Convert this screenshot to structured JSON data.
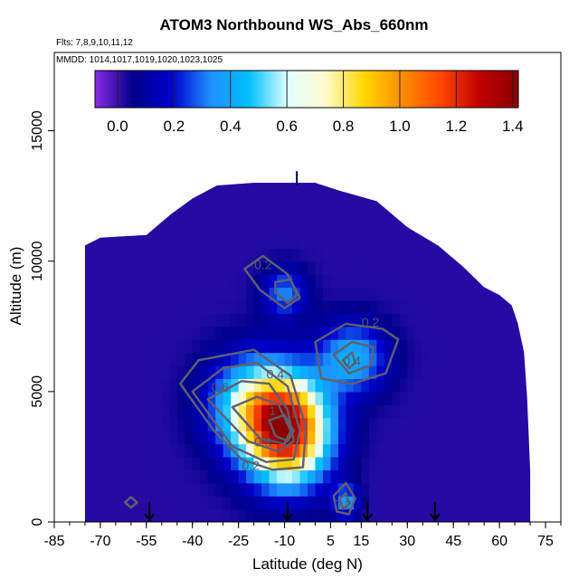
{
  "chart_data": {
    "type": "heatmap",
    "title": "ATOM3 Northbound WS_Abs_660nm",
    "subtitle_flights": "Flts: 7,8,9,10,11,12",
    "subtitle_dates": "MMDD: 1014,1017,1019,1020,1023,1025",
    "xlabel": "Latitude (deg N)",
    "ylabel": "Altitude (m)",
    "xlim": [
      -85,
      80
    ],
    "ylim": [
      0,
      18000
    ],
    "x_ticks": [
      -85,
      -70,
      -55,
      -40,
      -25,
      -10,
      5,
      15,
      30,
      45,
      60,
      75
    ],
    "y_ticks": [
      0,
      5000,
      10000,
      15000
    ],
    "colorbar": {
      "range": [
        -0.08,
        1.42
      ],
      "ticks": [
        0.0,
        0.2,
        0.4,
        0.6,
        0.8,
        1.0,
        1.2,
        1.4
      ],
      "tick_labels": [
        "0.0",
        "0.2",
        "0.4",
        "0.6",
        "0.8",
        "1.0",
        "1.2",
        "1.4"
      ],
      "colors": [
        "#8a2be2",
        "#00008b",
        "#0000cd",
        "#1e90ff",
        "#00bfff",
        "#e0ffff",
        "#fffacd",
        "#ffd700",
        "#ff8c00",
        "#ff4500",
        "#c00000",
        "#8b0000"
      ]
    },
    "field_peaks": [
      {
        "lat": -9,
        "alt": 3500,
        "value": 1.25
      },
      {
        "lat": -20,
        "alt": 4500,
        "value": 0.55
      },
      {
        "lat": 12,
        "alt": 6300,
        "value": 0.4
      },
      {
        "lat": -10,
        "alt": 8800,
        "value": 0.3
      },
      {
        "lat": 10,
        "alt": 800,
        "value": 0.35
      }
    ],
    "contour_labels": [
      {
        "text": "0.2",
        "lat": -17,
        "alt": 9700
      },
      {
        "text": "0.2",
        "lat": 18,
        "alt": 7500
      },
      {
        "text": "0.4",
        "lat": 12,
        "alt": 6000
      },
      {
        "text": "0.4",
        "lat": -13,
        "alt": 5500
      },
      {
        "text": "0.6",
        "lat": -31,
        "alt": 5000
      },
      {
        "text": "1",
        "lat": -14,
        "alt": 4100
      },
      {
        "text": "0.8",
        "lat": -17,
        "alt": 2900
      },
      {
        "text": "0.2",
        "lat": -21,
        "alt": 2000
      },
      {
        "text": "0.2",
        "lat": 9,
        "alt": 500
      }
    ],
    "arrow_latitudes": [
      -54,
      -9,
      17,
      39
    ],
    "grid": false
  }
}
